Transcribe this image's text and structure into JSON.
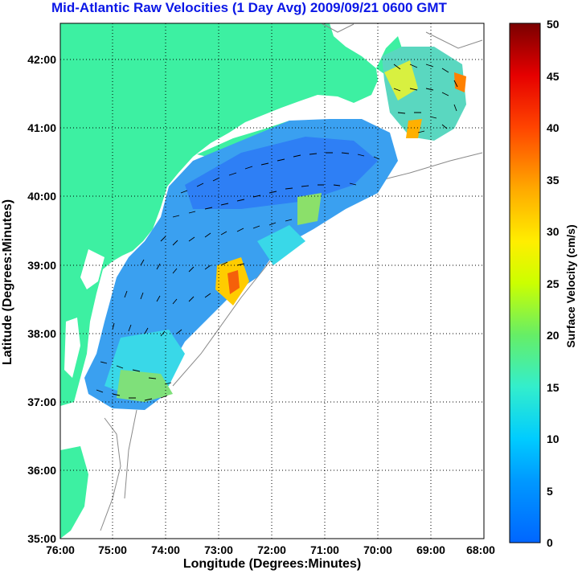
{
  "title": "Mid-Atlantic Raw Velocities (1 Day Avg) 2009/09/21 0600 GMT",
  "x_axis": {
    "label": "Longitude (Degrees:Minutes)",
    "ticks": [
      "76:00",
      "75:00",
      "74:00",
      "73:00",
      "72:00",
      "71:00",
      "70:00",
      "69:00",
      "68:00"
    ]
  },
  "y_axis": {
    "label": "Latitude (Degrees:Minutes)",
    "ticks": [
      "35:00",
      "36:00",
      "37:00",
      "38:00",
      "39:00",
      "40:00",
      "41:00",
      "42:00"
    ]
  },
  "colorbar": {
    "label": "Surface Velocity (cm/s)",
    "ticks": [
      "0",
      "5",
      "10",
      "15",
      "20",
      "25",
      "30",
      "35",
      "40",
      "45",
      "50"
    ]
  },
  "colors": {
    "land": "#3df0a2",
    "title": "#0b17e6",
    "coast_contour": "#8a8a8a",
    "arrow": "#000000"
  }
}
